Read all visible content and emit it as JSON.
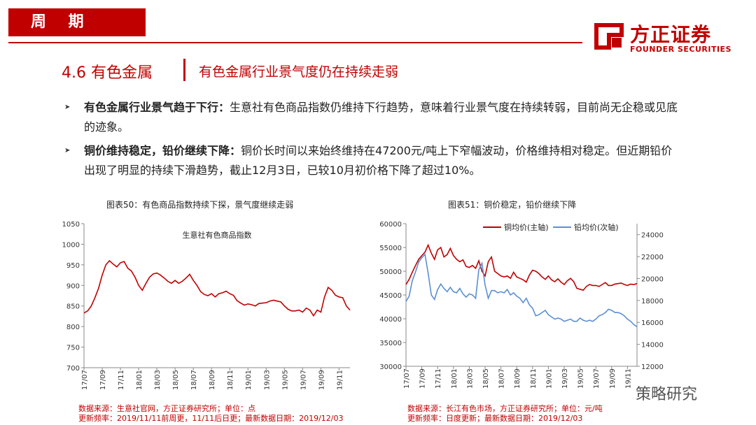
{
  "header": {
    "tag": "周 期",
    "logo_cn": "方正证券",
    "logo_en": "FOUNDER SECURITIES"
  },
  "section": {
    "title": "4.6 有色金属",
    "subtitle": "有色金属行业景气度仍在持续走弱"
  },
  "bullets": [
    {
      "bold": "有色金属行业景气趋于下行：",
      "text": "生意社有色商品指数仍维持下行趋势，意味着行业景气度在持续转弱，目前尚无企稳或见底的迹象。"
    },
    {
      "bold": "铜价维持稳定，铅价继续下降：",
      "text": "铜价长时间以来始终维持在47200元/吨上下窄幅波动，价格维持相对稳定。但近期铅价出现了明显的持续下滑趋势，截止12月3日，已较10月初价格下降了超过10%。"
    }
  ],
  "chart1": {
    "caption": "图表50：有色商品指数持续下探，景气度继续走弱",
    "source": "数据来源：生意社官网，方正证券研究所；单位：点",
    "frequency": "更新频率：2019/11/11前周更，11/11后日更；最新数据日期：2019/12/03"
  },
  "chart2": {
    "caption": "图表51：铜价稳定，铅价继续下降",
    "source": "数据来源：长江有色市场，方正证券研究所；单位：元/吨",
    "frequency": "更新频率：日度更新；最新数据日期：2019/12/03"
  },
  "watermark": "策略研究",
  "colors": {
    "accent": "#c00000",
    "lead": "#5b8fd1"
  },
  "chart_data": [
    {
      "type": "line",
      "legend": "生意社有色商品指数",
      "ylim": [
        700,
        1050
      ],
      "yticks": [
        700,
        750,
        800,
        850,
        900,
        950,
        1000,
        1050
      ],
      "xticks": [
        "17/07",
        "17/09",
        "17/11",
        "18/01",
        "18/03",
        "18/05",
        "18/07",
        "18/09",
        "18/11",
        "19/01",
        "19/03",
        "19/05",
        "19/07",
        "19/09",
        "19/11"
      ],
      "xrange": [
        0,
        29.2
      ],
      "grid": false,
      "series": [
        {
          "name": "生意社有色商品指数",
          "x": [
            0,
            0.4,
            0.8,
            1.2,
            1.6,
            2.0,
            2.4,
            2.8,
            3.2,
            3.6,
            4.0,
            4.4,
            4.8,
            5.2,
            5.6,
            6.0,
            6.4,
            6.8,
            7.2,
            7.6,
            8.0,
            8.4,
            8.8,
            9.2,
            9.6,
            10.0,
            10.4,
            10.8,
            11.2,
            11.6,
            12.0,
            12.4,
            12.8,
            13.2,
            13.6,
            14.0,
            14.4,
            14.8,
            15.2,
            15.6,
            16.0,
            16.4,
            16.8,
            17.2,
            17.6,
            18.0,
            18.4,
            18.8,
            19.2,
            19.6,
            20.0,
            20.4,
            20.8,
            21.2,
            21.6,
            22.0,
            22.4,
            22.8,
            23.2,
            23.6,
            24.0,
            24.4,
            24.8,
            25.2,
            25.6,
            26.0,
            26.4,
            26.8,
            27.2,
            27.6,
            28.0,
            28.4,
            28.8,
            29.2
          ],
          "y": [
            833,
            838,
            850,
            870,
            893,
            925,
            950,
            960,
            952,
            945,
            955,
            958,
            942,
            935,
            920,
            900,
            888,
            905,
            920,
            928,
            930,
            925,
            918,
            910,
            905,
            912,
            905,
            910,
            918,
            927,
            912,
            900,
            885,
            878,
            875,
            880,
            872,
            880,
            882,
            886,
            880,
            876,
            863,
            857,
            852,
            855,
            853,
            850,
            856,
            857,
            858,
            862,
            864,
            862,
            860,
            850,
            842,
            838,
            838,
            840,
            835,
            845,
            840,
            826,
            840,
            835,
            872,
            895,
            888,
            876,
            872,
            870,
            850,
            840
          ]
        }
      ]
    },
    {
      "type": "line",
      "ylim": [
        30000,
        60000
      ],
      "yticks": [
        30000,
        35000,
        40000,
        45000,
        50000,
        55000,
        60000
      ],
      "y2lim": [
        12000,
        25000
      ],
      "y2ticks": [
        12000,
        14000,
        16000,
        18000,
        20000,
        22000,
        24000
      ],
      "xticks": [
        "17/07",
        "17/09",
        "17/11",
        "18/01",
        "18/03",
        "18/05",
        "18/07",
        "18/09",
        "18/11",
        "19/01",
        "19/03",
        "19/05",
        "19/07",
        "19/09",
        "19/11"
      ],
      "xrange": [
        0,
        29.2
      ],
      "grid": false,
      "series": [
        {
          "name": "铜均价(主轴)",
          "axis": "left",
          "x": [
            0,
            0.4,
            0.8,
            1.2,
            1.6,
            2.0,
            2.4,
            2.8,
            3.2,
            3.6,
            4.0,
            4.4,
            4.8,
            5.2,
            5.6,
            6.0,
            6.4,
            6.8,
            7.2,
            7.6,
            8.0,
            8.4,
            8.8,
            9.2,
            9.6,
            10.0,
            10.4,
            10.8,
            11.2,
            11.6,
            12.0,
            12.4,
            12.8,
            13.2,
            13.6,
            14.0,
            14.4,
            14.8,
            15.2,
            15.6,
            16.0,
            16.4,
            16.8,
            17.2,
            17.6,
            18.0,
            18.4,
            18.8,
            19.2,
            19.6,
            20.0,
            20.4,
            20.8,
            21.2,
            21.6,
            22.0,
            22.4,
            22.8,
            23.2,
            23.6,
            24.0,
            24.4,
            24.8,
            25.2,
            25.6,
            26.0,
            26.4,
            26.8,
            27.2,
            27.6,
            28.0,
            28.4,
            28.8,
            29.2
          ],
          "y": [
            47200,
            48300,
            49800,
            51200,
            52500,
            53300,
            54000,
            55500,
            53800,
            52500,
            54500,
            55000,
            53000,
            53500,
            54800,
            53300,
            52500,
            52000,
            52400,
            51000,
            50800,
            51200,
            50600,
            52200,
            50000,
            49000,
            52000,
            53000,
            50000,
            49500,
            49000,
            48800,
            49000,
            48500,
            49800,
            48800,
            48500,
            48200,
            47700,
            49200,
            50200,
            50000,
            49500,
            48800,
            48300,
            49000,
            48200,
            47800,
            48400,
            47700,
            47200,
            48000,
            48500,
            47800,
            46400,
            46200,
            46000,
            46800,
            47200,
            47000,
            47000,
            46800,
            47200,
            47600,
            47000,
            47000,
            47300,
            47400,
            47500,
            47200,
            47000,
            47300,
            47200,
            47400
          ]
        },
        {
          "name": "铅均价(次轴)",
          "axis": "right",
          "x": [
            0,
            0.4,
            0.8,
            1.2,
            1.6,
            2.0,
            2.4,
            2.8,
            3.2,
            3.6,
            4.0,
            4.4,
            4.8,
            5.2,
            5.6,
            6.0,
            6.4,
            6.8,
            7.2,
            7.6,
            8.0,
            8.4,
            8.8,
            9.2,
            9.6,
            10.0,
            10.4,
            10.8,
            11.2,
            11.6,
            12.0,
            12.4,
            12.8,
            13.2,
            13.6,
            14.0,
            14.4,
            14.8,
            15.2,
            15.6,
            16.0,
            16.4,
            16.8,
            17.2,
            17.6,
            18.0,
            18.4,
            18.8,
            19.2,
            19.6,
            20.0,
            20.4,
            20.8,
            21.2,
            21.6,
            22.0,
            22.4,
            22.8,
            23.2,
            23.6,
            24.0,
            24.4,
            24.8,
            25.2,
            25.6,
            26.0,
            26.4,
            26.8,
            27.2,
            27.6,
            28.0,
            28.4,
            28.8,
            29.2
          ],
          "y": [
            17900,
            18400,
            19800,
            20600,
            21500,
            21900,
            22200,
            20500,
            18500,
            18100,
            19000,
            19500,
            19100,
            18800,
            19200,
            18800,
            18700,
            19100,
            18600,
            18300,
            18600,
            18500,
            18200,
            20800,
            21400,
            19400,
            18200,
            18900,
            18900,
            18700,
            18800,
            18700,
            19000,
            18500,
            18700,
            18400,
            18200,
            17800,
            18200,
            17600,
            17300,
            16600,
            16700,
            16900,
            17100,
            16700,
            16500,
            16300,
            16400,
            16300,
            16100,
            16200,
            16300,
            16100,
            16100,
            16400,
            16200,
            16100,
            16200,
            16100,
            16300,
            16600,
            16700,
            16900,
            17200,
            17100,
            16900,
            16900,
            16800,
            16600,
            16300,
            16100,
            15800,
            15600
          ]
        }
      ]
    }
  ]
}
